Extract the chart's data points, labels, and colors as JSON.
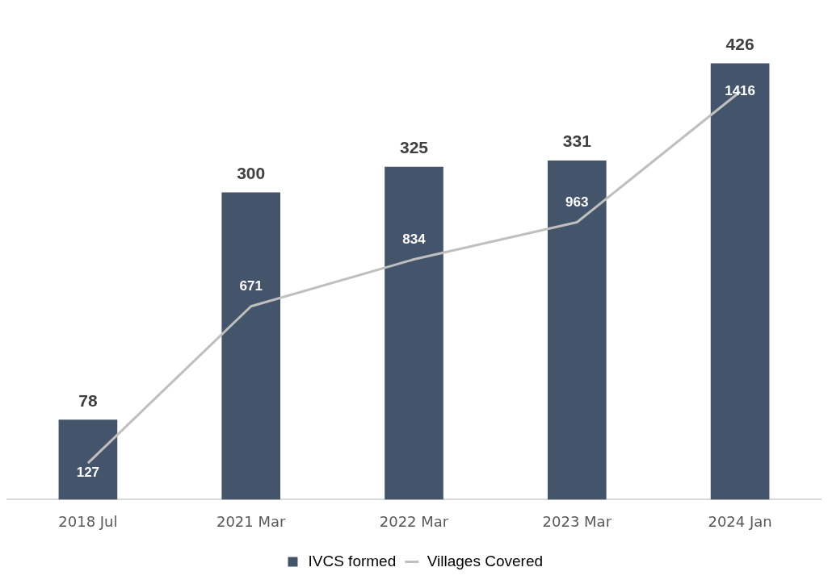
{
  "chart_data": {
    "type": "bar",
    "categories": [
      "2018 Jul",
      "2021 Mar",
      "2022 Mar",
      "2023 Mar",
      "2024 Jan"
    ],
    "series": [
      {
        "name": "IVCS formed",
        "color": "#44546a",
        "values": [
          78,
          300,
          325,
          331,
          426
        ]
      },
      {
        "name": "Villages Covered",
        "type": "line",
        "axis": "y2",
        "color": "#bfbfbf",
        "values": [
          127,
          671,
          834,
          963,
          1416
        ]
      }
    ],
    "data_labels": true,
    "legend": "bottom",
    "grid": false,
    "marker": "none"
  }
}
